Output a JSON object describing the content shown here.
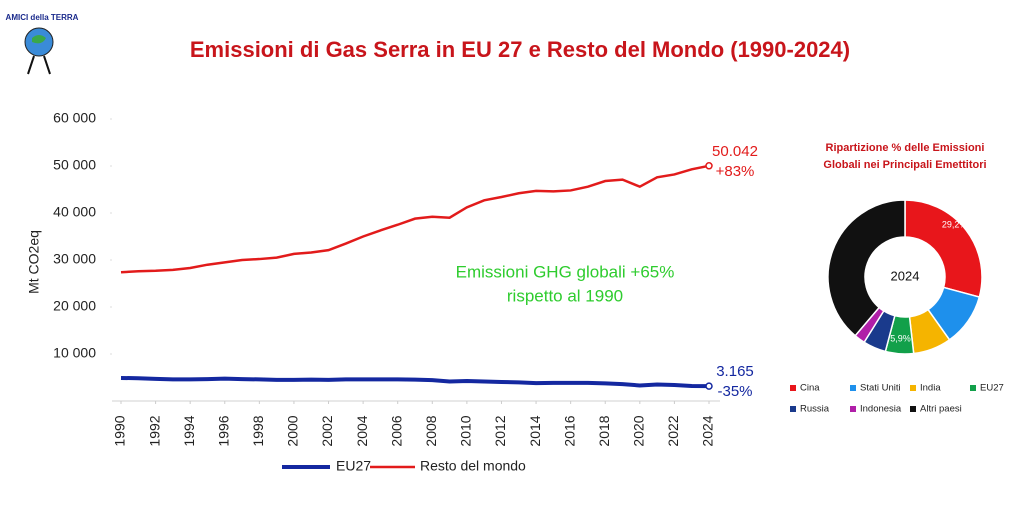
{
  "logo_text": "AMICI della TERRA",
  "chart_data": [
    {
      "type": "line",
      "title": "Emissioni di Gas Serra in EU 27 e Resto del Mondo (1990-2024)",
      "y_label": "Mt CO2eq",
      "x": [
        1990,
        1991,
        1992,
        1993,
        1994,
        1995,
        1996,
        1997,
        1998,
        1999,
        2000,
        2001,
        2002,
        2003,
        2004,
        2005,
        2006,
        2007,
        2008,
        2009,
        2010,
        2011,
        2012,
        2013,
        2014,
        2015,
        2016,
        2017,
        2018,
        2019,
        2020,
        2021,
        2022,
        2023,
        2024
      ],
      "xlim": [
        1990,
        2024
      ],
      "xticks": [
        1990,
        1992,
        1994,
        1996,
        1998,
        2000,
        2002,
        2004,
        2006,
        2008,
        2010,
        2012,
        2014,
        2016,
        2018,
        2020,
        2022,
        2024
      ],
      "ylim": [
        0,
        60000
      ],
      "yticks": [
        {
          "value": 10000,
          "label": "10 000"
        },
        {
          "value": 20000,
          "label": "20 000"
        },
        {
          "value": 30000,
          "label": "30 000"
        },
        {
          "value": 40000,
          "label": "40 000"
        },
        {
          "value": 50000,
          "label": "50 000"
        },
        {
          "value": 60000,
          "label": "60 000"
        }
      ],
      "grid": false,
      "legend": "bottom",
      "series": [
        {
          "name": "EU27",
          "color": "#1428a0",
          "values": [
            4900,
            4850,
            4700,
            4600,
            4600,
            4650,
            4750,
            4650,
            4600,
            4500,
            4500,
            4550,
            4500,
            4600,
            4600,
            4600,
            4600,
            4550,
            4450,
            4150,
            4250,
            4150,
            4050,
            3950,
            3800,
            3850,
            3850,
            3850,
            3750,
            3600,
            3300,
            3500,
            3400,
            3200,
            3165
          ],
          "value_labels": [
            null,
            null,
            null,
            null,
            null,
            null,
            null,
            null,
            null,
            null,
            null,
            null,
            null,
            null,
            null,
            null,
            null,
            null,
            null,
            null,
            null,
            null,
            null,
            null,
            null,
            null,
            null,
            null,
            null,
            null,
            null,
            null,
            null,
            null,
            "3.165"
          ],
          "change_label": "-35%"
        },
        {
          "name": "Resto del mondo",
          "color": "#e21b1b",
          "values": [
            27400,
            27600,
            27700,
            27900,
            28300,
            29000,
            29500,
            30000,
            30200,
            30500,
            31300,
            31600,
            32100,
            33500,
            35000,
            36300,
            37500,
            38800,
            39200,
            39000,
            41200,
            42700,
            43400,
            44200,
            44700,
            44600,
            44800,
            45600,
            46800,
            47100,
            45600,
            47600,
            48200,
            49300,
            50042
          ],
          "value_labels": [
            null,
            null,
            null,
            null,
            null,
            null,
            null,
            null,
            null,
            null,
            null,
            null,
            null,
            null,
            null,
            null,
            null,
            null,
            null,
            null,
            null,
            null,
            null,
            null,
            null,
            null,
            null,
            null,
            null,
            null,
            null,
            null,
            null,
            null,
            "50.042"
          ],
          "change_label": "+83%"
        }
      ],
      "annotations": [
        "Emissioni GHG globali +65%",
        "rispetto al 1990"
      ],
      "annotation_color": "#2ecc2e"
    },
    {
      "type": "pie",
      "title": [
        "Ripartizione % delle Emissioni",
        "Globali nei Principali Emettitori"
      ],
      "center_label": "2024",
      "categories": [
        "Cina",
        "Stati Uniti",
        "India",
        "EU27",
        "Russia",
        "Indonesia",
        "Altri paesi"
      ],
      "values": [
        29.2,
        11,
        8,
        5.9,
        4.8,
        2.3,
        38.8
      ],
      "value_labels": [
        "29,2%",
        null,
        null,
        "5,9%",
        null,
        null,
        null
      ],
      "colors": [
        "#e8161b",
        "#1e90ec",
        "#f5b400",
        "#12a04a",
        "#1a3a8c",
        "#b01fa8",
        "#111111"
      ],
      "legend": "bottom"
    }
  ]
}
